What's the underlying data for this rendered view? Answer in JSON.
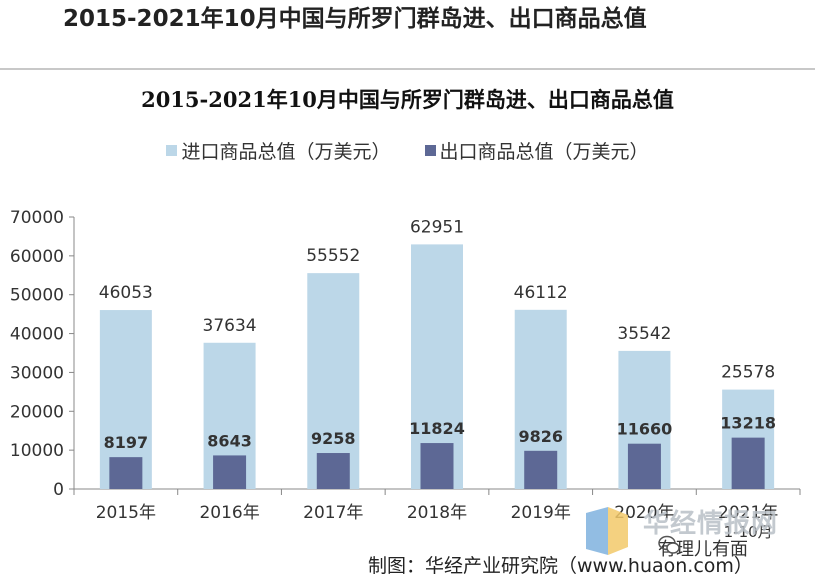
{
  "page_title": "2015-2021年10月中国与所罗门群岛进、出口商品总值",
  "chart_data": {
    "type": "bar",
    "title": "2015-2021年10月中国与所罗门群岛进、出口商品总值",
    "categories": [
      "2015年",
      "2016年",
      "2017年",
      "2018年",
      "2019年",
      "2020年",
      "2021年 1-10月"
    ],
    "category_labels": [
      "2015年",
      "2016年",
      "2017年",
      "2018年",
      "2019年",
      "2020年",
      "2021年"
    ],
    "last_category_sublabel": "1-10月",
    "series": [
      {
        "name": "进口商品总值（万美元）",
        "values": [
          46053,
          37634,
          55552,
          62951,
          46112,
          35542,
          25578
        ],
        "color": "#bcd7e8"
      },
      {
        "name": "出口商品总值（万美元）",
        "values": [
          8197,
          8643,
          9258,
          11824,
          9826,
          11660,
          13218
        ],
        "color": "#5d6895"
      }
    ],
    "ylim": [
      0,
      70000
    ],
    "yticks": [
      "0",
      "10000",
      "20000",
      "30000",
      "40000",
      "50000",
      "60000",
      "70000"
    ],
    "xlabel": "",
    "ylabel": "",
    "grid": false,
    "legend": "top-center"
  },
  "caption": "制图：华经产业研究院（www.huaon.com）",
  "watermark_text": "华经情报网",
  "wechat_label": "有理儿有面"
}
